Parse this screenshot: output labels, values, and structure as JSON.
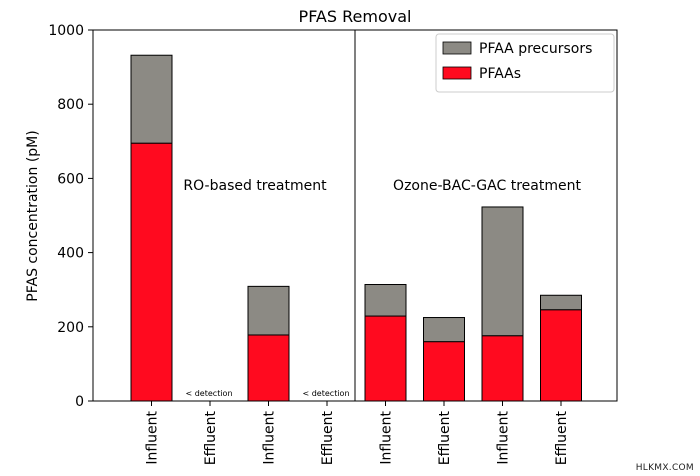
{
  "chart_data": {
    "type": "bar",
    "stacked": true,
    "title": "PFAS Removal",
    "xlabel": "",
    "ylabel": "PFAS concentration (pM)",
    "ylim": [
      0,
      1000
    ],
    "yticks": [
      0,
      200,
      400,
      600,
      800,
      1000
    ],
    "categories": [
      "Influent",
      "Effluent",
      "Influent",
      "Effluent",
      "Influent",
      "Effluent",
      "Influent",
      "Effluent"
    ],
    "series": [
      {
        "name": "PFAAs",
        "color": "#ff0a1f",
        "values": [
          695,
          0,
          178,
          0,
          229,
          160,
          176,
          246
        ]
      },
      {
        "name": "PFAA precursors",
        "color": "#8c8a84",
        "values": [
          237,
          0,
          131,
          0,
          85,
          65,
          347,
          39
        ]
      }
    ],
    "legend": {
      "placement": "top-right",
      "entries": [
        "PFAA precursors",
        "PFAAs"
      ]
    },
    "annotations": {
      "ro_label": "RO-based treatment",
      "ozone_label": "Ozone-BAC-GAC treatment",
      "nd_1": "< detection",
      "nd_2": "< detection"
    },
    "grid": false
  },
  "watermark": "HLKMX.COM"
}
